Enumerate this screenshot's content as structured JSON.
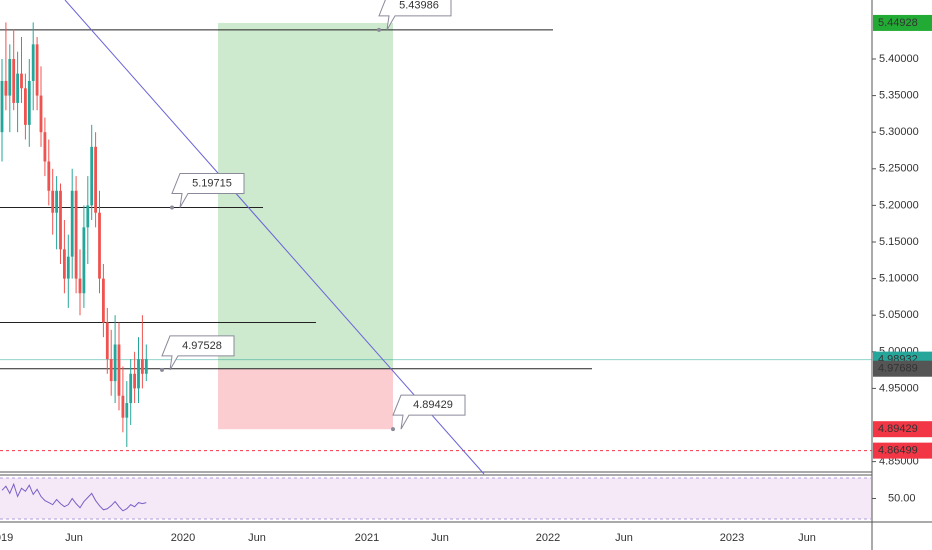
{
  "chart_data": {
    "type": "candlestick",
    "ylim": [
      4.8358,
      5.4806
    ],
    "yticks": [
      {
        "value": 4.85,
        "label": "4.85000"
      },
      {
        "value": 4.95,
        "label": "4.95000"
      },
      {
        "value": 5.0,
        "label": "5.00000"
      },
      {
        "value": 5.05,
        "label": "5.05000"
      },
      {
        "value": 5.1,
        "label": "5.10000"
      },
      {
        "value": 5.15,
        "label": "5.15000"
      },
      {
        "value": 5.2,
        "label": "5.20000"
      },
      {
        "value": 5.25,
        "label": "5.25000"
      },
      {
        "value": 5.3,
        "label": "5.30000"
      },
      {
        "value": 5.35,
        "label": "5.35000"
      },
      {
        "value": 5.4,
        "label": "5.40000"
      }
    ],
    "x_labels": [
      "019",
      "Jun",
      "2020",
      "Jun",
      "2021",
      "Jun",
      "2022",
      "Jun",
      "2023",
      "Jun"
    ],
    "colors": {
      "up": "#26a69a",
      "down": "#ef5350"
    },
    "open": [
      5.3,
      5.37,
      5.35,
      5.4,
      5.34,
      5.38,
      5.36,
      5.31,
      5.37,
      5.42,
      5.35,
      5.3,
      5.26,
      5.22,
      5.19,
      5.22,
      5.14,
      5.1,
      5.13,
      5.22,
      5.1,
      5.08,
      5.17,
      5.2,
      5.28,
      5.19,
      5.1,
      5.04,
      4.99,
      4.96,
      5.01,
      4.94,
      4.91,
      4.93,
      4.97,
      4.95,
      4.99,
      4.97
    ],
    "high": [
      5.4,
      5.45,
      5.42,
      5.44,
      5.41,
      5.43,
      5.38,
      5.4,
      5.45,
      5.43,
      5.39,
      5.32,
      5.29,
      5.25,
      5.24,
      5.23,
      5.18,
      5.16,
      5.25,
      5.24,
      5.14,
      5.2,
      5.24,
      5.31,
      5.3,
      5.22,
      5.12,
      5.06,
      5.03,
      5.05,
      5.04,
      4.98,
      4.96,
      4.99,
      5.0,
      5.02,
      5.05,
      5.01
    ],
    "low": [
      5.26,
      5.33,
      5.3,
      5.33,
      5.3,
      5.34,
      5.29,
      5.28,
      5.33,
      5.33,
      5.28,
      5.24,
      5.2,
      5.16,
      5.14,
      5.12,
      5.08,
      5.06,
      5.1,
      5.08,
      5.05,
      5.06,
      5.12,
      5.18,
      5.17,
      5.08,
      5.02,
      4.97,
      4.94,
      4.93,
      4.92,
      4.89,
      4.87,
      4.9,
      4.93,
      4.93,
      4.95,
      4.96
    ],
    "close": [
      5.37,
      5.35,
      5.4,
      5.34,
      5.38,
      5.36,
      5.31,
      5.37,
      5.42,
      5.35,
      5.3,
      5.26,
      5.22,
      5.19,
      5.22,
      5.14,
      5.1,
      5.13,
      5.22,
      5.1,
      5.08,
      5.17,
      5.2,
      5.28,
      5.19,
      5.1,
      5.04,
      4.99,
      4.96,
      5.01,
      4.94,
      4.91,
      4.93,
      4.97,
      4.95,
      4.99,
      4.97,
      4.99
    ],
    "horizontal_lines": [
      5.43986,
      5.19715,
      5.04,
      4.97689
    ],
    "callouts": [
      5.43986,
      5.19715,
      4.97528,
      4.89429
    ],
    "position": {
      "target": 5.44928,
      "entry": 4.97689,
      "stop": 4.89429
    },
    "last_price": 4.98932,
    "alert_price": 4.86499,
    "price_labels": [
      {
        "value": 5.44928,
        "color": "#22ab34"
      },
      {
        "value": 4.98932,
        "color": "#26a69a"
      },
      {
        "value": 4.97689,
        "color": "#555555"
      },
      {
        "value": 4.89429,
        "color": "#f23645"
      },
      {
        "value": 4.86499,
        "color": "#f23645"
      }
    ],
    "rsi": {
      "ylim": [
        30,
        70
      ],
      "yticks": [
        {
          "value": 50,
          "label": "50.00"
        }
      ],
      "color": "#7b5fc6",
      "values": [
        58,
        62,
        55,
        64,
        52,
        60,
        57,
        63,
        54,
        59,
        52,
        48,
        46,
        44,
        49,
        45,
        42,
        44,
        50,
        45,
        41,
        47,
        51,
        55,
        48,
        43,
        39,
        40,
        43,
        47,
        42,
        38,
        40,
        44,
        42,
        46,
        45,
        46
      ]
    }
  }
}
